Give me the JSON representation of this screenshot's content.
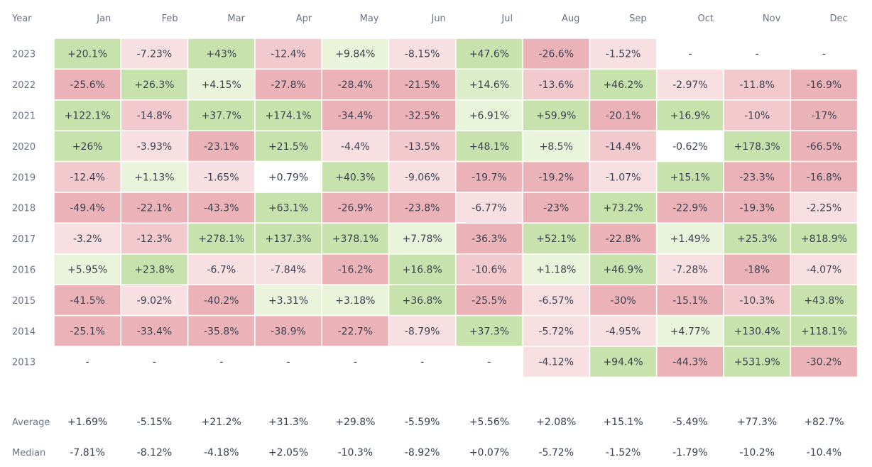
{
  "chart_data": {
    "type": "heatmap",
    "corner_label": "Year",
    "months": [
      "Jan",
      "Feb",
      "Mar",
      "Apr",
      "May",
      "Jun",
      "Jul",
      "Aug",
      "Sep",
      "Oct",
      "Nov",
      "Dec"
    ],
    "rows": [
      {
        "year": "2023",
        "values": [
          "+20.1%",
          "-7.23%",
          "+43%",
          "-12.4%",
          "+9.84%",
          "-8.15%",
          "+47.6%",
          "-26.6%",
          "-1.52%",
          "-",
          "-",
          "-"
        ]
      },
      {
        "year": "2022",
        "values": [
          "-25.6%",
          "+26.3%",
          "+4.15%",
          "-27.8%",
          "-28.4%",
          "-21.5%",
          "+14.6%",
          "-13.6%",
          "+46.2%",
          "-2.97%",
          "-11.8%",
          "-16.9%"
        ]
      },
      {
        "year": "2021",
        "values": [
          "+122.1%",
          "-14.8%",
          "+37.7%",
          "+174.1%",
          "-34.4%",
          "-32.5%",
          "+6.91%",
          "+59.9%",
          "-20.1%",
          "+16.9%",
          "-10%",
          "-17%"
        ]
      },
      {
        "year": "2020",
        "values": [
          "+26%",
          "-3.93%",
          "-23.1%",
          "+21.5%",
          "-4.4%",
          "-13.5%",
          "+48.1%",
          "+8.5%",
          "-14.4%",
          "-0.62%",
          "+178.3%",
          "-66.5%"
        ]
      },
      {
        "year": "2019",
        "values": [
          "-12.4%",
          "+1.13%",
          "-1.65%",
          "+0.79%",
          "+40.3%",
          "-9.06%",
          "-19.7%",
          "-19.2%",
          "-1.07%",
          "+15.1%",
          "-23.3%",
          "-16.8%"
        ]
      },
      {
        "year": "2018",
        "values": [
          "-49.4%",
          "-22.1%",
          "-43.3%",
          "+63.1%",
          "-26.9%",
          "-23.8%",
          "-6.77%",
          "-23%",
          "+73.2%",
          "-22.9%",
          "-19.3%",
          "-2.25%"
        ]
      },
      {
        "year": "2017",
        "values": [
          "-3.2%",
          "-12.3%",
          "+278.1%",
          "+137.3%",
          "+378.1%",
          "+7.78%",
          "-36.3%",
          "+52.1%",
          "-22.8%",
          "+1.49%",
          "+25.3%",
          "+818.9%"
        ]
      },
      {
        "year": "2016",
        "values": [
          "+5.95%",
          "+23.8%",
          "-6.7%",
          "-7.84%",
          "-16.2%",
          "+16.8%",
          "-10.6%",
          "+1.18%",
          "+46.9%",
          "-7.28%",
          "-18%",
          "-4.07%"
        ]
      },
      {
        "year": "2015",
        "values": [
          "-41.5%",
          "-9.02%",
          "-40.2%",
          "+3.31%",
          "+3.18%",
          "+36.8%",
          "-25.5%",
          "-6.57%",
          "-30%",
          "-15.1%",
          "-10.3%",
          "+43.8%"
        ]
      },
      {
        "year": "2014",
        "values": [
          "-25.1%",
          "-33.4%",
          "-35.8%",
          "-38.9%",
          "-22.7%",
          "-8.79%",
          "+37.3%",
          "-5.72%",
          "-4.95%",
          "+4.77%",
          "+130.4%",
          "+118.1%"
        ]
      },
      {
        "year": "2013",
        "values": [
          "-",
          "-",
          "-",
          "-",
          "-",
          "-",
          "-",
          "-4.12%",
          "+94.4%",
          "-44.3%",
          "+531.9%",
          "-30.2%"
        ]
      }
    ],
    "summary": [
      {
        "label": "Average",
        "values": [
          "+1.69%",
          "-5.15%",
          "+21.2%",
          "+31.3%",
          "+29.8%",
          "-5.59%",
          "+5.56%",
          "+2.08%",
          "+15.1%",
          "-5.49%",
          "+77.3%",
          "+82.7%"
        ]
      },
      {
        "label": "Median",
        "values": [
          "-7.81%",
          "-8.12%",
          "-4.18%",
          "+2.05%",
          "-10.3%",
          "-8.92%",
          "+0.07%",
          "-5.72%",
          "-1.52%",
          "-1.79%",
          "-10.2%",
          "-10.4%"
        ]
      }
    ],
    "colors": {
      "pos_1": "#e9f4da",
      "pos_2": "#dcedc9",
      "pos_3": "#c7e2ad",
      "neg_1": "#f8dfe1",
      "neg_2": "#f2c9cd",
      "neg_3": "#ebb3b8",
      "neutral": "#ffffff",
      "text": "#3b4150",
      "label": "#6b7386"
    }
  }
}
